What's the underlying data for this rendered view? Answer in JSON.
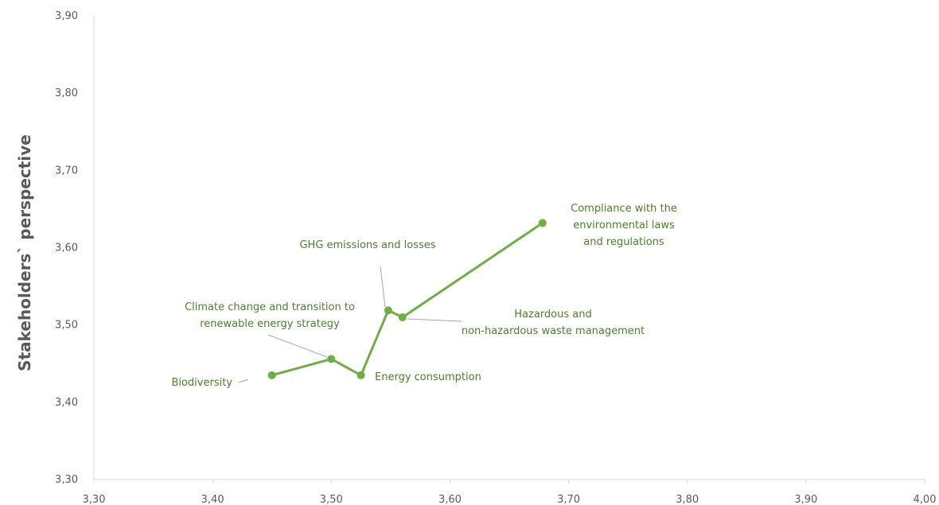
{
  "chart_data": {
    "type": "scatter",
    "xlabel": "",
    "ylabel": "Stakeholders` perspective",
    "xlim": [
      3.3,
      4.0
    ],
    "ylim": [
      3.3,
      3.9
    ],
    "x_ticks": [
      "3,30",
      "3,40",
      "3,50",
      "3,60",
      "3,70",
      "3,80",
      "3,90",
      "4,00"
    ],
    "y_ticks": [
      "3,30",
      "3,40",
      "3,50",
      "3,60",
      "3,70",
      "3,80",
      "3,90"
    ],
    "grid": false,
    "colors": {
      "series": "#70ad47",
      "label": "#4e7d2e",
      "leader": "#a6a6a6",
      "axis": "#d9d9d9",
      "tick": "#595959"
    },
    "series": [
      {
        "connected": true,
        "points": [
          {
            "label": "Biodiversity",
            "x": 3.45,
            "y": 3.435
          },
          {
            "label": "Climate change and transition to renewable energy strategy",
            "x": 3.5,
            "y": 3.456
          },
          {
            "label": "Energy consumption",
            "x": 3.525,
            "y": 3.435
          },
          {
            "label": "GHG emissions and losses",
            "x": 3.548,
            "y": 3.519
          },
          {
            "label": "Hazardous and non-hazardous waste management",
            "x": 3.56,
            "y": 3.51
          },
          {
            "label": "Compliance with the environmental laws and regulations",
            "x": 3.678,
            "y": 3.632
          }
        ]
      }
    ]
  }
}
